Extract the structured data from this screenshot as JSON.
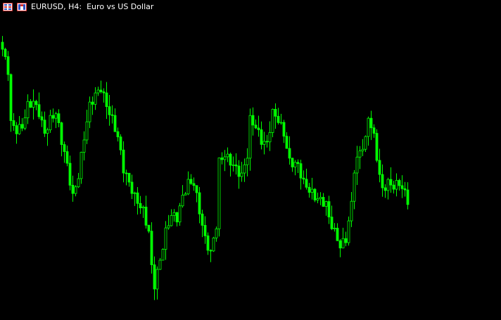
{
  "window": {
    "title": "EURUSD, H4:  Euro vs US Dollar",
    "icons": [
      "chart-window-icon",
      "symbol-icon"
    ]
  },
  "colors": {
    "background": "#000000",
    "candle": "#00ff00",
    "wick": "#00ff00",
    "text": "#ffffff"
  },
  "chart_data": {
    "type": "candlestick",
    "symbol": "EURUSD",
    "timeframe": "H4",
    "title": "EURUSD, H4:  Euro vs US Dollar",
    "grid": false,
    "axes_shown": false,
    "close_path": {
      "bar": [
        0,
        2,
        3,
        5,
        7,
        9,
        11,
        13,
        15,
        17,
        19,
        21,
        23,
        25,
        27,
        29,
        31,
        33,
        35,
        37,
        39,
        41,
        43,
        45,
        47,
        50,
        52,
        53,
        54,
        56,
        58,
        60,
        62,
        64,
        66,
        68,
        70,
        72,
        74,
        76,
        77,
        79,
        81,
        83,
        85,
        87,
        88,
        90,
        92,
        94,
        96,
        98,
        100,
        102,
        105,
        107,
        109,
        111,
        113,
        115,
        116,
        118,
        120,
        122,
        124,
        125,
        127,
        129,
        130,
        132,
        134,
        135,
        137,
        139,
        141,
        143,
        144
      ],
      "price": [
        385,
        355,
        280,
        270,
        275,
        305,
        310,
        295,
        265,
        285,
        295,
        255,
        220,
        175,
        205,
        260,
        305,
        320,
        330,
        305,
        285,
        260,
        215,
        195,
        175,
        155,
        125,
        75,
        50,
        85,
        125,
        150,
        145,
        175,
        195,
        195,
        155,
        115,
        95,
        135,
        225,
        235,
        225,
        215,
        205,
        235,
        285,
        275,
        255,
        250,
        295,
        285,
        265,
        225,
        220,
        195,
        185,
        175,
        170,
        165,
        145,
        125,
        105,
        115,
        165,
        215,
        240,
        255,
        290,
        260,
        205,
        185,
        195,
        190,
        195,
        180,
        170
      ]
    }
  }
}
